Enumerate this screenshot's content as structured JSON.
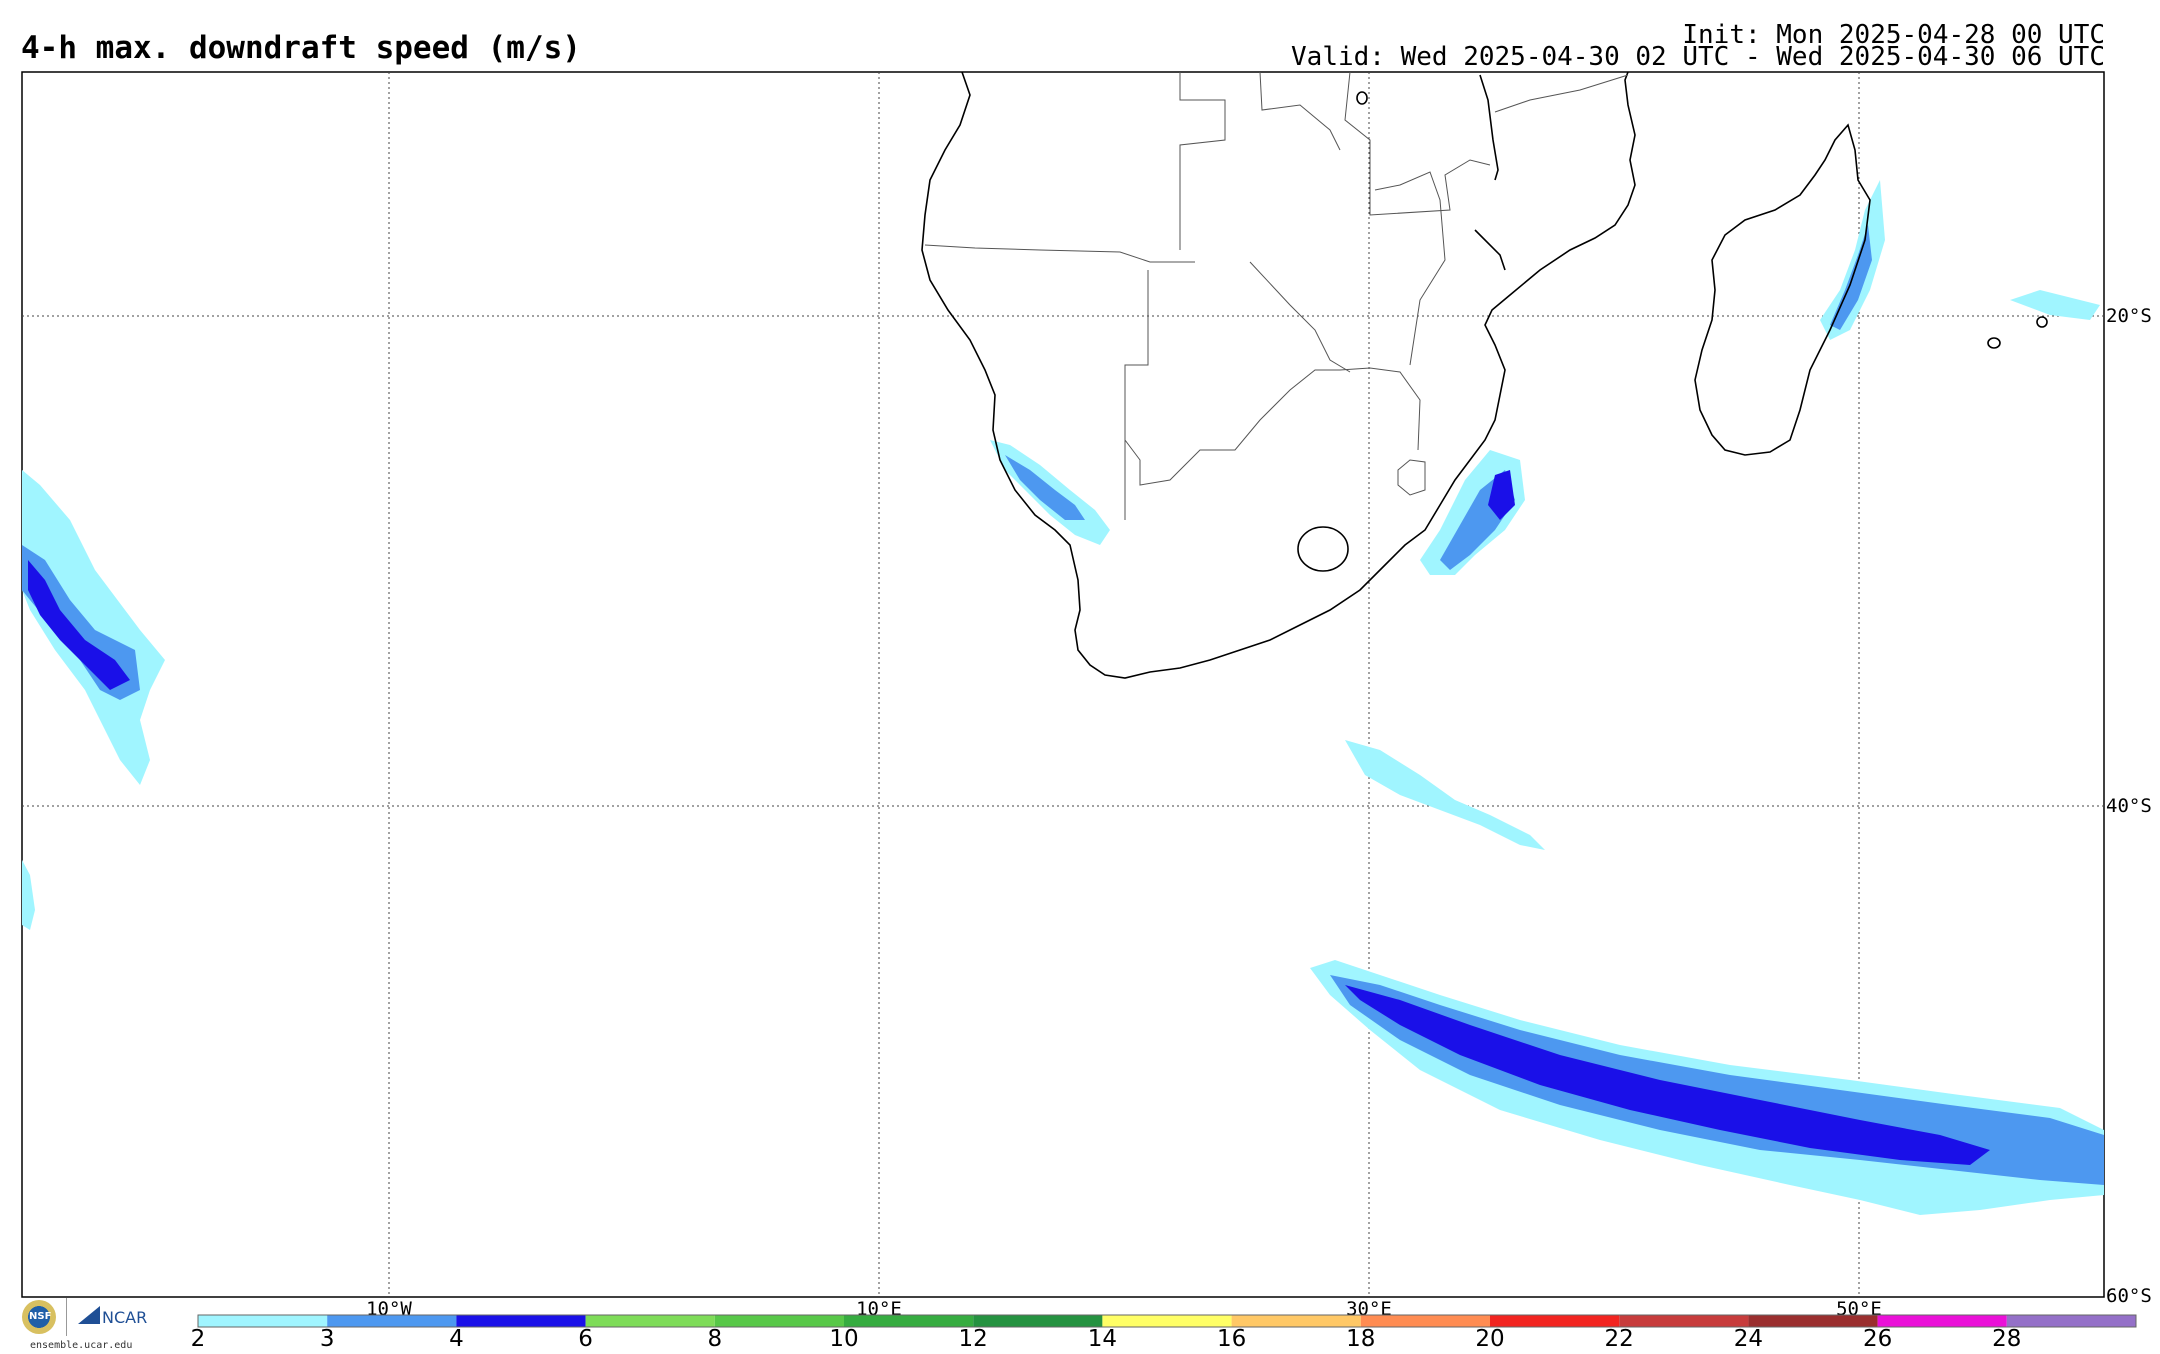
{
  "header": {
    "title": "4-h max. downdraft speed (m/s)",
    "init": "Init: Mon 2025-04-28 00 UTC",
    "valid": "Valid: Wed 2025-04-30 02 UTC - Wed 2025-04-30 06 UTC"
  },
  "map": {
    "longitude_labels": [
      "10°W",
      "10°E",
      "30°E",
      "50°E"
    ],
    "latitude_labels": [
      "20°S",
      "40°S",
      "60°S"
    ],
    "gridlines": "dotted"
  },
  "colorbar": {
    "ticks": [
      "2",
      "3",
      "4",
      "6",
      "8",
      "10",
      "12",
      "14",
      "16",
      "18",
      "20",
      "22",
      "24",
      "26",
      "28"
    ],
    "colors": [
      "#a0f5ff",
      "#4d98f0",
      "#1a10e8",
      "#7edc58",
      "#58c848",
      "#36ac40",
      "#259240",
      "#ffff66",
      "#ffc866",
      "#ff8c52",
      "#f22420",
      "#c73c3c",
      "#9a2e2e",
      "#ea10d8",
      "#9470c8"
    ]
  },
  "footer": {
    "logo_nsf": "NSF",
    "logo_ncar": "NCAR",
    "website": "ensemble.ucar.edu"
  },
  "colors": {
    "light_cyan": "#a0f5ff",
    "medium_blue": "#4d98f0",
    "dark_blue": "#1a10e8"
  }
}
